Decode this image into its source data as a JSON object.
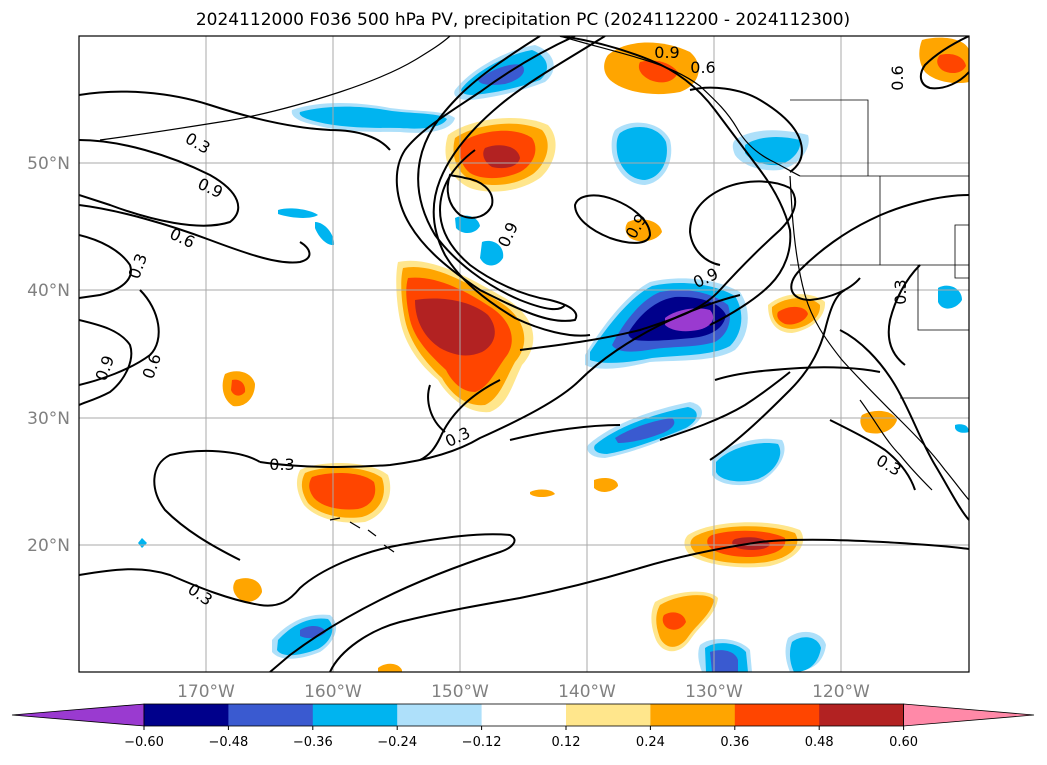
{
  "title": "2024112000 F036 500 hPa PV, precipitation PC (2024112200 - 2024112300)",
  "lat_labels": [
    "20°N",
    "30°N",
    "40°N",
    "50°N"
  ],
  "lon_labels": [
    "170°W",
    "160°W",
    "150°W",
    "140°W",
    "130°W",
    "120°W"
  ],
  "colorbar": {
    "ticks": [
      "−0.60",
      "−0.48",
      "−0.36",
      "−0.24",
      "−0.12",
      "0.12",
      "0.24",
      "0.36",
      "0.48",
      "0.60"
    ],
    "colors": [
      "#9a3ad0",
      "#00008b",
      "#3a5ad0",
      "#00b4f0",
      "#aee0fa",
      "#ffffff",
      "#ffe68c",
      "#ffa500",
      "#ff4500",
      "#b22222",
      "#ff89a8"
    ]
  },
  "contour_labels": [
    "0.3",
    "0.9",
    "0.6",
    "0.3",
    "0.9",
    "0.6",
    "0.9",
    "0.9",
    "0.6",
    "0.9",
    "0.6",
    "0.3",
    "0.3",
    "0.3",
    "0.3",
    "0.9",
    "0.3"
  ]
}
